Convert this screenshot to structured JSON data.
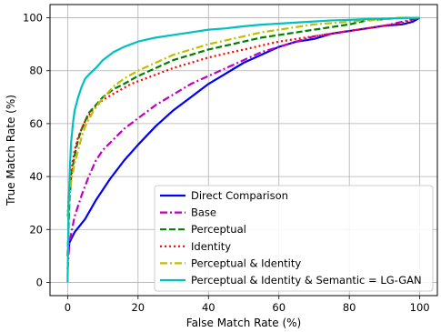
{
  "chart_data": {
    "type": "line",
    "title": "",
    "xlabel": "False Match Rate (%)",
    "ylabel": "True Match Rate (%)",
    "xlim": [
      -5,
      105
    ],
    "ylim": [
      -5,
      105
    ],
    "xticks": [
      0,
      20,
      40,
      60,
      80,
      100
    ],
    "yticks": [
      0,
      20,
      40,
      60,
      80,
      100
    ],
    "grid": true,
    "legend_position": "lower-right",
    "series": [
      {
        "name": "Direct Comparison",
        "color": "#0000ff",
        "dash": "solid",
        "points": [
          [
            0,
            10
          ],
          [
            0.5,
            15
          ],
          [
            2,
            19
          ],
          [
            5,
            24
          ],
          [
            8,
            31
          ],
          [
            12,
            39
          ],
          [
            16,
            46
          ],
          [
            20,
            52
          ],
          [
            25,
            59
          ],
          [
            30,
            65
          ],
          [
            35,
            70
          ],
          [
            40,
            75
          ],
          [
            45,
            79
          ],
          [
            50,
            83
          ],
          [
            55,
            86
          ],
          [
            60,
            89
          ],
          [
            65,
            91
          ],
          [
            70,
            92
          ],
          [
            75,
            94
          ],
          [
            80,
            95
          ],
          [
            85,
            96
          ],
          [
            90,
            97
          ],
          [
            95,
            97.5
          ],
          [
            98,
            98.5
          ],
          [
            100,
            100
          ]
        ]
      },
      {
        "name": "Base",
        "color": "#bf00bf",
        "dash": "dashdot",
        "points": [
          [
            0,
            5
          ],
          [
            0.5,
            15
          ],
          [
            2,
            25
          ],
          [
            4,
            33
          ],
          [
            6,
            40
          ],
          [
            8,
            46
          ],
          [
            10,
            50
          ],
          [
            13,
            54
          ],
          [
            16,
            58
          ],
          [
            20,
            62
          ],
          [
            25,
            67
          ],
          [
            30,
            71
          ],
          [
            35,
            75
          ],
          [
            40,
            78
          ],
          [
            45,
            81
          ],
          [
            50,
            84
          ],
          [
            55,
            87
          ],
          [
            60,
            89
          ],
          [
            65,
            91
          ],
          [
            70,
            93
          ],
          [
            75,
            94
          ],
          [
            80,
            95
          ],
          [
            85,
            96
          ],
          [
            90,
            97
          ],
          [
            95,
            98.5
          ],
          [
            100,
            100
          ]
        ]
      },
      {
        "name": "Perceptual",
        "color": "#008000",
        "dash": "dashed",
        "points": [
          [
            0,
            10
          ],
          [
            0.5,
            30
          ],
          [
            1,
            40
          ],
          [
            2,
            48
          ],
          [
            3,
            54
          ],
          [
            4,
            58
          ],
          [
            6,
            64
          ],
          [
            8,
            67
          ],
          [
            10,
            70
          ],
          [
            13,
            73
          ],
          [
            16,
            75
          ],
          [
            20,
            78
          ],
          [
            25,
            81
          ],
          [
            30,
            84
          ],
          [
            35,
            86
          ],
          [
            40,
            88
          ],
          [
            45,
            89.5
          ],
          [
            50,
            91
          ],
          [
            55,
            92.5
          ],
          [
            60,
            93.5
          ],
          [
            65,
            94.5
          ],
          [
            70,
            95.5
          ],
          [
            75,
            96.5
          ],
          [
            80,
            97.5
          ],
          [
            85,
            99
          ],
          [
            90,
            99.5
          ],
          [
            95,
            100
          ],
          [
            100,
            100
          ]
        ]
      },
      {
        "name": "Identity",
        "color": "#ff0000",
        "dash": "dotted",
        "points": [
          [
            0,
            25
          ],
          [
            0.5,
            35
          ],
          [
            1,
            42
          ],
          [
            2,
            50
          ],
          [
            3,
            55
          ],
          [
            5,
            61
          ],
          [
            7,
            65
          ],
          [
            10,
            69
          ],
          [
            14,
            72
          ],
          [
            18,
            75
          ],
          [
            22,
            77
          ],
          [
            26,
            79
          ],
          [
            30,
            81
          ],
          [
            35,
            83
          ],
          [
            40,
            85
          ],
          [
            45,
            86.5
          ],
          [
            50,
            88
          ],
          [
            55,
            89.5
          ],
          [
            60,
            91
          ],
          [
            65,
            92
          ],
          [
            70,
            93
          ],
          [
            75,
            94
          ],
          [
            80,
            95
          ],
          [
            85,
            96
          ],
          [
            90,
            97
          ],
          [
            95,
            98
          ],
          [
            100,
            100
          ]
        ]
      },
      {
        "name": "Perceptual & Identity",
        "color": "#bfbf00",
        "dash": "dashdot",
        "points": [
          [
            0,
            25
          ],
          [
            0.5,
            32
          ],
          [
            1,
            38
          ],
          [
            2,
            45
          ],
          [
            3,
            50
          ],
          [
            4,
            55
          ],
          [
            5,
            59
          ],
          [
            7,
            64
          ],
          [
            9,
            68
          ],
          [
            11,
            71
          ],
          [
            13,
            74
          ],
          [
            16,
            77
          ],
          [
            20,
            80
          ],
          [
            25,
            83
          ],
          [
            30,
            86
          ],
          [
            35,
            88
          ],
          [
            40,
            90
          ],
          [
            45,
            91.5
          ],
          [
            50,
            93
          ],
          [
            55,
            94.5
          ],
          [
            60,
            95.5
          ],
          [
            65,
            96.5
          ],
          [
            70,
            97.5
          ],
          [
            75,
            98
          ],
          [
            80,
            98.5
          ],
          [
            85,
            99
          ],
          [
            90,
            99.5
          ],
          [
            95,
            100
          ],
          [
            100,
            100
          ]
        ]
      },
      {
        "name": "Perceptual & Identity & Semantic = LG-GAN",
        "color": "#00bfbf",
        "dash": "solid",
        "points": [
          [
            0,
            0
          ],
          [
            0.3,
            30
          ],
          [
            0.7,
            45
          ],
          [
            1,
            53
          ],
          [
            1.5,
            60
          ],
          [
            2,
            65
          ],
          [
            3,
            70
          ],
          [
            4,
            74
          ],
          [
            5,
            77
          ],
          [
            6,
            78.5
          ],
          [
            8,
            81
          ],
          [
            10,
            84
          ],
          [
            13,
            87
          ],
          [
            16,
            89
          ],
          [
            20,
            91
          ],
          [
            25,
            92.5
          ],
          [
            30,
            93.5
          ],
          [
            35,
            94.5
          ],
          [
            40,
            95.5
          ],
          [
            45,
            96
          ],
          [
            50,
            96.8
          ],
          [
            55,
            97.4
          ],
          [
            60,
            97.8
          ],
          [
            65,
            98.2
          ],
          [
            70,
            98.6
          ],
          [
            75,
            99
          ],
          [
            80,
            99.2
          ],
          [
            85,
            99.5
          ],
          [
            90,
            99.7
          ],
          [
            95,
            99.9
          ],
          [
            100,
            100
          ]
        ]
      }
    ]
  }
}
